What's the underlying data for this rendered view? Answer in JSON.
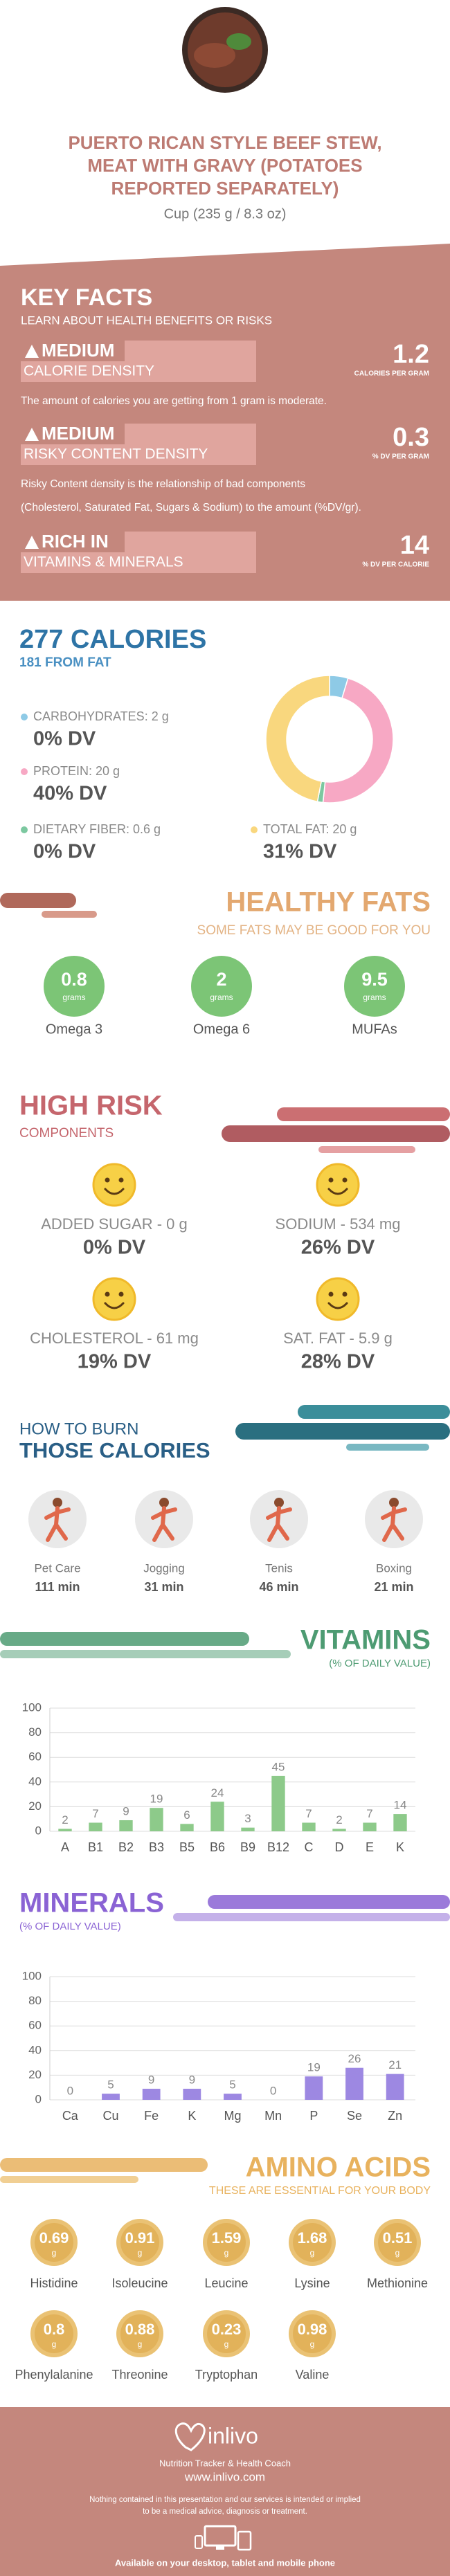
{
  "header": {
    "title": [
      "PUERTO RICAN STYLE BEEF STEW,",
      "MEAT WITH GRAVY (POTATOES",
      "REPORTED SEPARATELY)"
    ],
    "serving": "Cup (235 g / 8.3 oz)"
  },
  "key_facts": {
    "title": "KEY FACTS",
    "subtitle": "LEARN ABOUT HEALTH BENEFITS OR RISKS",
    "items": [
      {
        "level": "MEDIUM",
        "label": "CALORIE DENSITY",
        "value": "1.2",
        "unit": "CALORIES PER GRAM",
        "description": [
          "The amount of calories you are getting from 1 gram is moderate."
        ]
      },
      {
        "level": "MEDIUM",
        "label": "RISKY CONTENT DENSITY",
        "value": "0.3",
        "unit": "% DV PER GRAM",
        "description": [
          "Risky Content density is the relationship of bad components",
          "(Cholesterol, Saturated Fat, Sugars & Sodium) to the amount (%DV/gr)."
        ]
      },
      {
        "level": "RICH  IN",
        "label": "VITAMINS & MINERALS",
        "value": "14",
        "unit": "% DV PER CALORIE"
      }
    ]
  },
  "calories": {
    "title": "277 CALORIES",
    "subtitle": "181 FROM FAT",
    "nutrients": [
      {
        "label": "CARBOHYDRATES: 2 g",
        "dv": "0% DV",
        "grams": 2,
        "color": "#8ecae6"
      },
      {
        "label": "PROTEIN: 20 g",
        "dv": "40% DV",
        "grams": 20,
        "color": "#f7a8c4"
      },
      {
        "label": "DIETARY FIBER: 0.6 g",
        "dv": "0% DV",
        "grams": 0.6,
        "color": "#7cc8a0"
      },
      {
        "label": "TOTAL FAT: 20 g",
        "dv": "31% DV",
        "grams": 20,
        "color": "#f9d77e"
      }
    ]
  },
  "healthy_fats": {
    "title": "HEALTHY FATS",
    "subtitle": "SOME FATS MAY BE GOOD FOR YOU",
    "color": "#7cc576",
    "items": [
      {
        "value": "0.8",
        "unit": "grams",
        "name": "Omega 3"
      },
      {
        "value": "2",
        "unit": "grams",
        "name": "Omega 6"
      },
      {
        "value": "9.5",
        "unit": "grams",
        "name": "MUFAs"
      }
    ]
  },
  "high_risk": {
    "title": "HIGH RISK",
    "subtitle": "COMPONENTS",
    "items": [
      {
        "label": "ADDED SUGAR - 0 g",
        "dv": "0% DV"
      },
      {
        "label": "SODIUM - 534 mg",
        "dv": "26% DV"
      },
      {
        "label": "CHOLESTEROL - 61 mg",
        "dv": "19% DV"
      },
      {
        "label": "SAT. FAT - 5.9 g",
        "dv": "28% DV"
      }
    ]
  },
  "burn": {
    "title_top": "HOW TO BURN",
    "title": "THOSE CALORIES",
    "activities": [
      {
        "name": "Pet Care",
        "time": "111 min"
      },
      {
        "name": "Jogging",
        "time": "31 min"
      },
      {
        "name": "Tenis",
        "time": "46 min"
      },
      {
        "name": "Boxing",
        "time": "21 min"
      }
    ]
  },
  "chart_data": [
    {
      "type": "bar",
      "title": "VITAMINS",
      "subtitle": "(% OF DAILY VALUE)",
      "categories": [
        "A",
        "B1",
        "B2",
        "B3",
        "B5",
        "B6",
        "B9",
        "B12",
        "C",
        "D",
        "E",
        "K"
      ],
      "values": [
        2,
        7,
        9,
        19,
        6,
        24,
        3,
        45,
        7,
        2,
        7,
        14
      ],
      "color": "#8dca8a",
      "ylim": [
        0,
        100
      ],
      "yticks": [
        0,
        20,
        40,
        60,
        80,
        100
      ],
      "grid": true
    },
    {
      "type": "bar",
      "title": "MINERALS",
      "subtitle": "(% OF DAILY VALUE)",
      "categories": [
        "Ca",
        "Cu",
        "Fe",
        "K",
        "Mg",
        "Mn",
        "P",
        "Se",
        "Zn"
      ],
      "values": [
        0,
        5,
        9,
        9,
        5,
        0,
        19,
        26,
        21
      ],
      "color": "#9d88e2",
      "ylim": [
        0,
        100
      ],
      "yticks": [
        0,
        20,
        40,
        60,
        80,
        100
      ],
      "grid": true
    }
  ],
  "amino_acids": {
    "title": "AMINO ACIDS",
    "subtitle": "THESE ARE ESSENTIAL FOR YOUR BODY",
    "items": [
      {
        "value": "0.69",
        "unit": "g",
        "name": "Histidine"
      },
      {
        "value": "0.91",
        "unit": "g",
        "name": "Isoleucine"
      },
      {
        "value": "1.59",
        "unit": "g",
        "name": "Leucine"
      },
      {
        "value": "1.68",
        "unit": "g",
        "name": "Lysine"
      },
      {
        "value": "0.51",
        "unit": "g",
        "name": "Methionine"
      },
      {
        "value": "0.8",
        "unit": "g",
        "name": "Phenylalanine"
      },
      {
        "value": "0.88",
        "unit": "g",
        "name": "Threonine"
      },
      {
        "value": "0.23",
        "unit": "g",
        "name": "Tryptophan"
      },
      {
        "value": "0.98",
        "unit": "g",
        "name": "Valine"
      }
    ]
  },
  "footer": {
    "brand": "inlivo",
    "tagline": "Nutrition Tracker & Health Coach",
    "url": "www.inlivo.com",
    "disclaimer": [
      "Nothing contained in this presentation and our services is intended or implied",
      "to be a medical advice, diagnosis or treatment."
    ],
    "availability": "Available on your desktop, tablet and mobile phone"
  }
}
